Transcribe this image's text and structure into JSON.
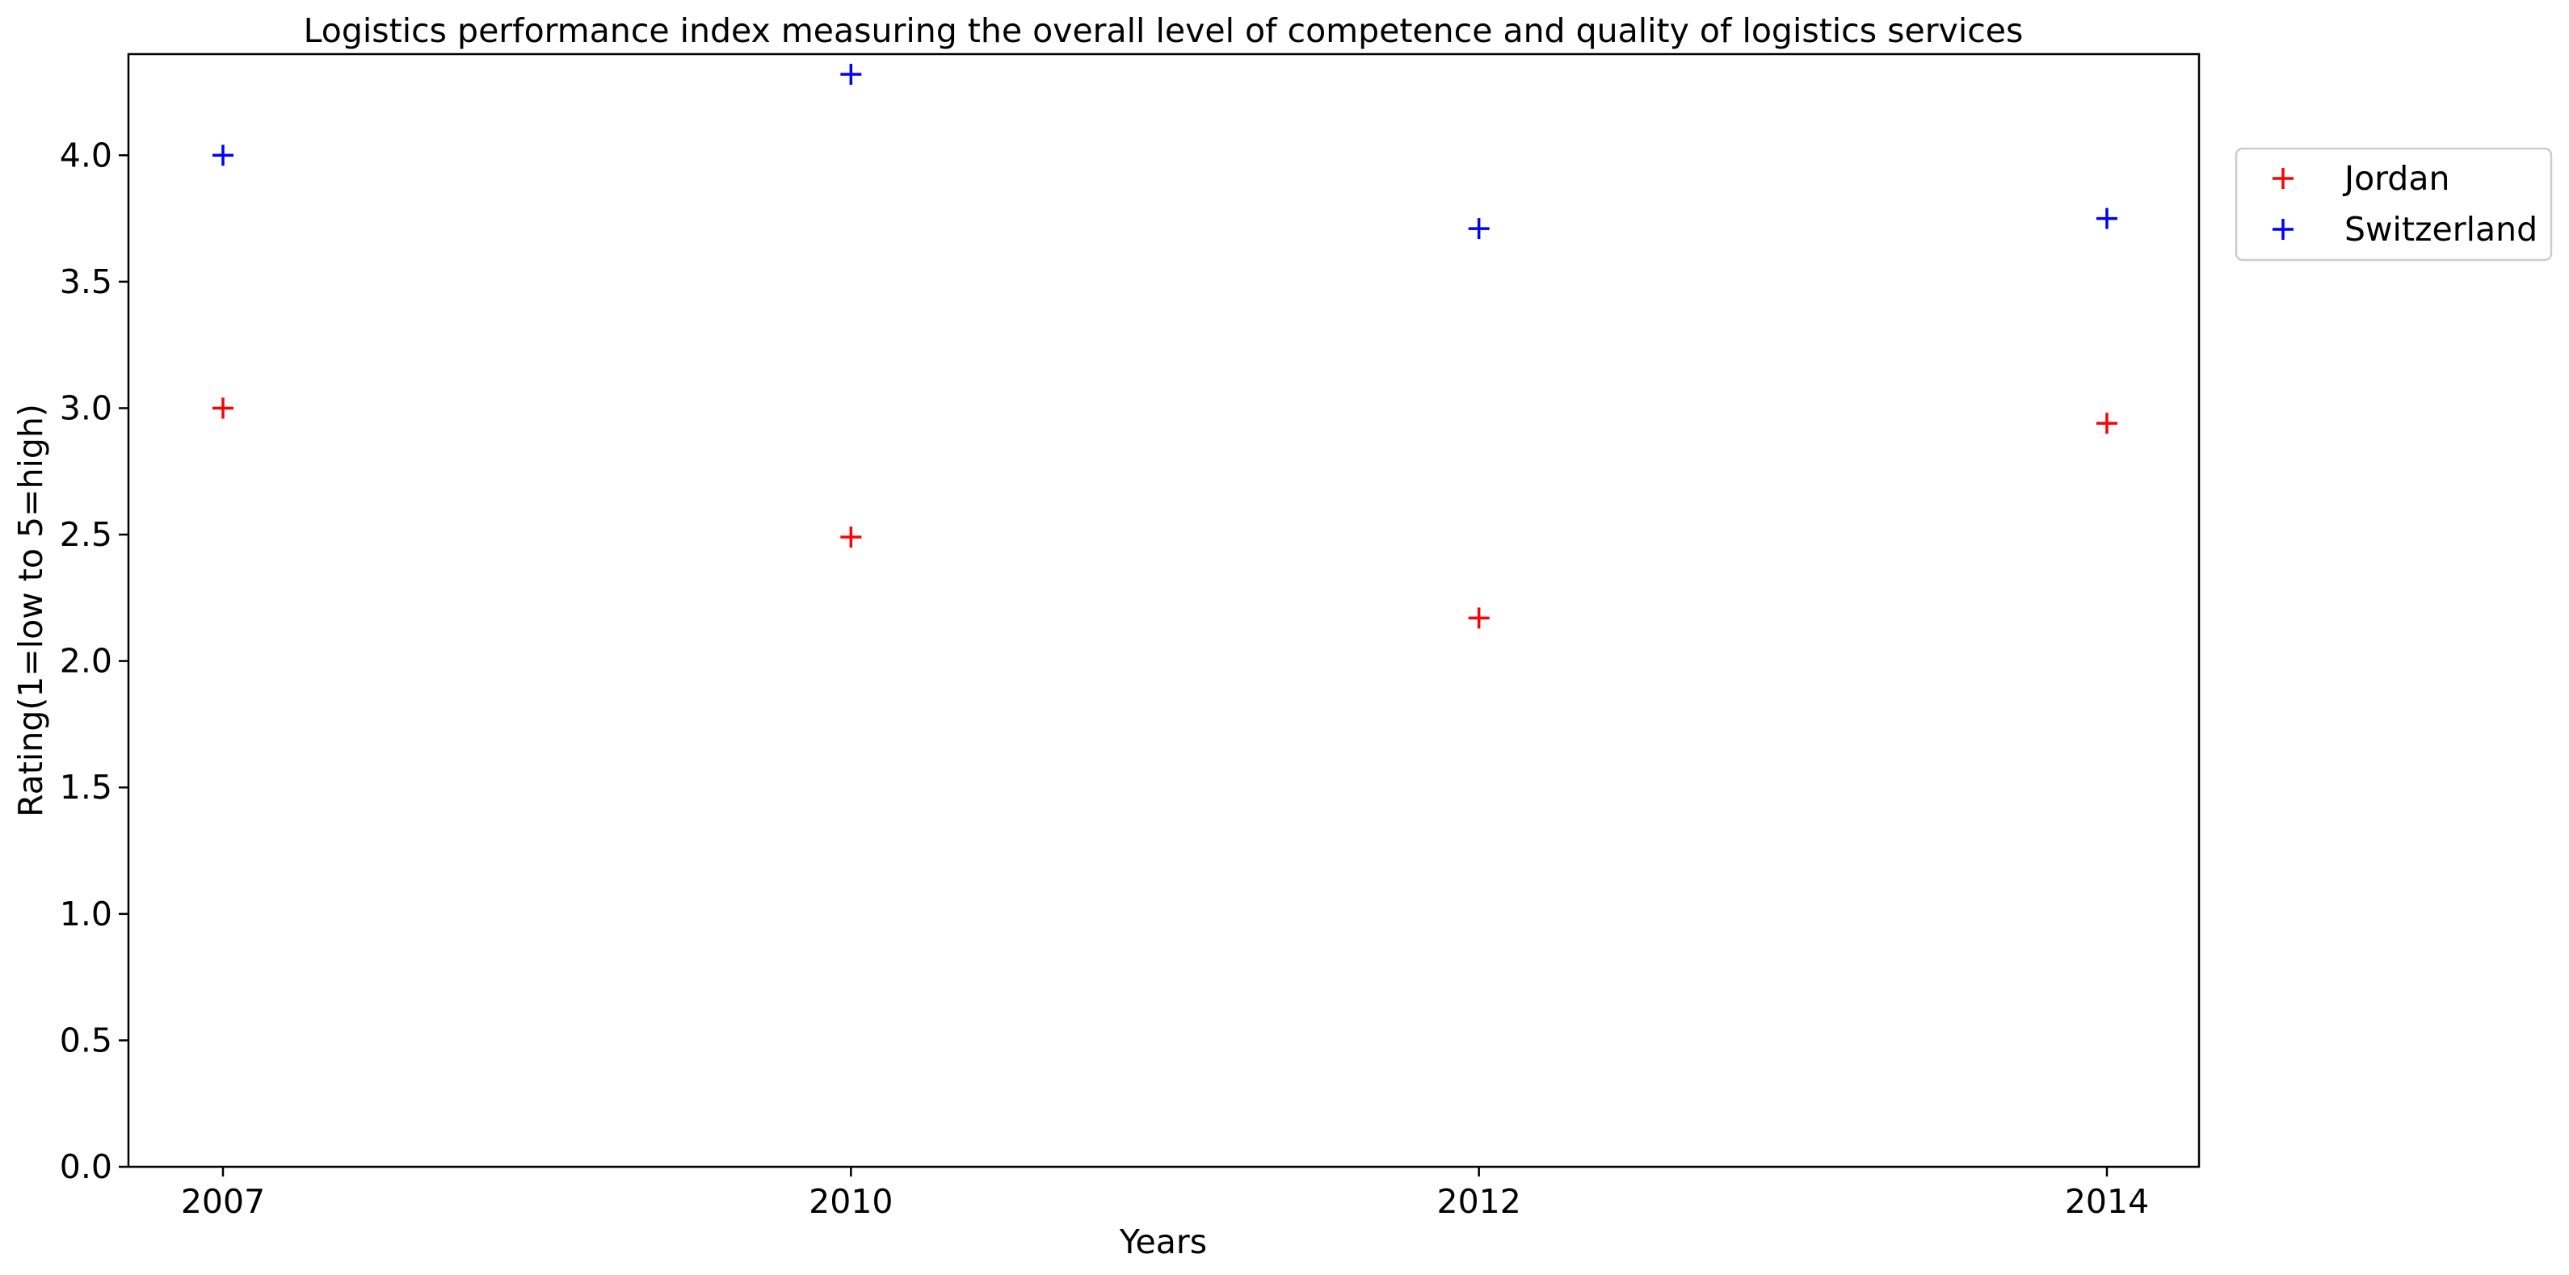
{
  "chart_data": {
    "type": "scatter",
    "title": "Logistics performance index measuring the overall level of competence and quality of logistics services",
    "xlabel": "Years",
    "ylabel": "Rating(1=low to 5=high)",
    "categories": [
      "2007",
      "2010",
      "2012",
      "2014"
    ],
    "ylim": [
      0,
      4.4
    ],
    "yticks": [
      "0.0",
      "0.5",
      "1.0",
      "1.5",
      "2.0",
      "2.5",
      "3.0",
      "3.5",
      "4.0"
    ],
    "grid": false,
    "legend_position": "outside-top-right",
    "marker": "plus",
    "series": [
      {
        "name": "Jordan",
        "color": "#ff0000",
        "values": [
          3.0,
          2.49,
          2.17,
          2.94
        ]
      },
      {
        "name": "Switzerland",
        "color": "#0000ff",
        "values": [
          4.0,
          4.32,
          3.71,
          3.75
        ]
      }
    ]
  }
}
